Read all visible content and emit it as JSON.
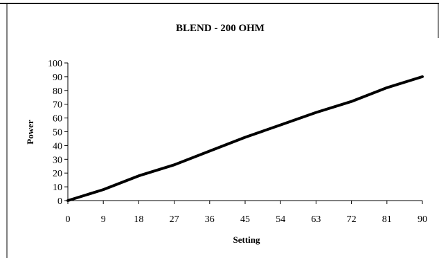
{
  "chart_data": {
    "type": "line",
    "title": "BLEND - 200 OHM",
    "xlabel": "Setting",
    "ylabel": "Power",
    "xlim": [
      0,
      90
    ],
    "ylim": [
      0,
      100
    ],
    "x_ticks": [
      0,
      9,
      18,
      27,
      36,
      45,
      54,
      63,
      72,
      81,
      90
    ],
    "y_ticks": [
      0,
      10,
      20,
      30,
      40,
      50,
      60,
      70,
      80,
      90,
      100
    ],
    "grid": false,
    "legend": "none",
    "series": [
      {
        "color": "#000000",
        "x": [
          0,
          9,
          18,
          27,
          36,
          45,
          54,
          63,
          72,
          81,
          90
        ],
        "y": [
          0,
          8,
          18,
          26,
          36,
          46,
          55,
          64,
          72,
          82,
          90
        ]
      }
    ]
  }
}
